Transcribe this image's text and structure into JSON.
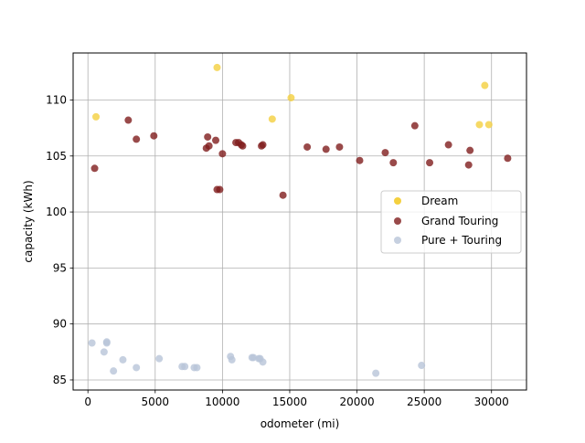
{
  "chart_data": {
    "type": "scatter",
    "title": "",
    "xlabel": "odometer (mi)",
    "ylabel": "capacity (kWh)",
    "xlim": [
      -1100,
      32600
    ],
    "ylim": [
      84.1,
      114.2
    ],
    "xticks": [
      0,
      5000,
      10000,
      15000,
      20000,
      25000,
      30000
    ],
    "yticks": [
      85,
      90,
      95,
      100,
      105,
      110
    ],
    "grid": true,
    "legend_position": "center-right",
    "series": [
      {
        "name": "Dream",
        "color": "#f4d03f",
        "points": [
          [
            600,
            108.5
          ],
          [
            9600,
            112.9
          ],
          [
            13700,
            108.3
          ],
          [
            15100,
            110.2
          ],
          [
            29100,
            107.8
          ],
          [
            29500,
            111.3
          ],
          [
            29800,
            107.8
          ]
        ]
      },
      {
        "name": "Grand Touring",
        "color": "#7f1d1d",
        "points": [
          [
            500,
            103.9
          ],
          [
            3000,
            108.2
          ],
          [
            3600,
            106.5
          ],
          [
            4900,
            106.8
          ],
          [
            8800,
            105.7
          ],
          [
            8900,
            106.7
          ],
          [
            9000,
            105.9
          ],
          [
            9500,
            106.4
          ],
          [
            9600,
            102.0
          ],
          [
            9800,
            102.0
          ],
          [
            10000,
            105.2
          ],
          [
            11000,
            106.2
          ],
          [
            11200,
            106.2
          ],
          [
            11400,
            106.0
          ],
          [
            11500,
            105.9
          ],
          [
            12900,
            105.9
          ],
          [
            13000,
            106.0
          ],
          [
            14500,
            101.5
          ],
          [
            16300,
            105.8
          ],
          [
            17700,
            105.6
          ],
          [
            18700,
            105.8
          ],
          [
            20200,
            104.6
          ],
          [
            22100,
            105.3
          ],
          [
            22700,
            104.4
          ],
          [
            24300,
            107.7
          ],
          [
            25400,
            104.4
          ],
          [
            26800,
            106.0
          ],
          [
            28300,
            104.2
          ],
          [
            28400,
            105.5
          ],
          [
            31200,
            104.8
          ]
        ]
      },
      {
        "name": "Pure + Touring",
        "color": "#b8c4d8",
        "points": [
          [
            300,
            88.3
          ],
          [
            1200,
            87.5
          ],
          [
            1400,
            88.3
          ],
          [
            1400,
            88.4
          ],
          [
            1900,
            85.8
          ],
          [
            2600,
            86.8
          ],
          [
            3600,
            86.1
          ],
          [
            5300,
            86.9
          ],
          [
            7000,
            86.2
          ],
          [
            7200,
            86.2
          ],
          [
            7900,
            86.1
          ],
          [
            8100,
            86.1
          ],
          [
            10600,
            87.1
          ],
          [
            10700,
            86.8
          ],
          [
            12200,
            87.0
          ],
          [
            12300,
            87.0
          ],
          [
            12700,
            86.9
          ],
          [
            12800,
            86.9
          ],
          [
            13000,
            86.6
          ],
          [
            21400,
            85.6
          ],
          [
            24800,
            86.3
          ]
        ]
      }
    ]
  }
}
